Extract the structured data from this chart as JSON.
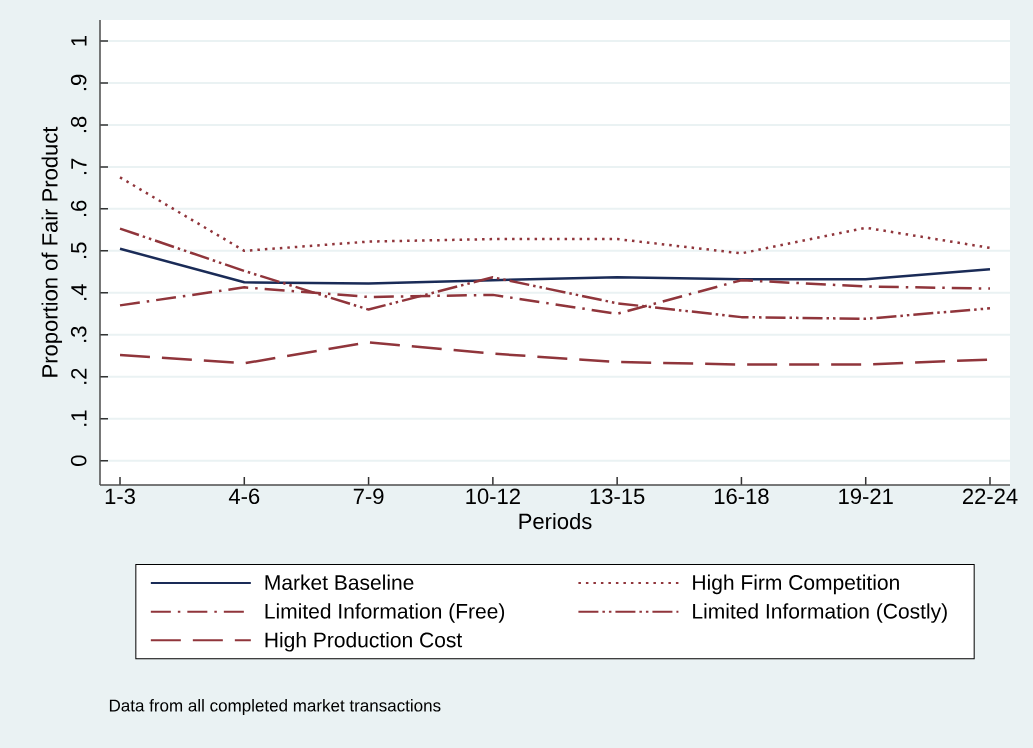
{
  "chart_data": {
    "type": "line",
    "xlabel": "Periods",
    "ylabel": "Proportion of Fair Product",
    "categories": [
      "1-3",
      "4-6",
      "7-9",
      "10-12",
      "13-15",
      "16-18",
      "19-21",
      "22-24"
    ],
    "series": [
      {
        "name": "Market Baseline",
        "color": "#1a2b57",
        "line_style": "solid",
        "values": [
          0.505,
          0.425,
          0.422,
          0.43,
          0.437,
          0.432,
          0.432,
          0.456
        ]
      },
      {
        "name": "High Firm Competition",
        "color": "#90353b",
        "line_style": "dotted",
        "values": [
          0.675,
          0.5,
          0.522,
          0.528,
          0.528,
          0.494,
          0.555,
          0.507
        ]
      },
      {
        "name": "Limited Information (Free)",
        "color": "#90353b",
        "line_style": "dashdot",
        "values": [
          0.37,
          0.413,
          0.39,
          0.395,
          0.35,
          0.43,
          0.415,
          0.41
        ]
      },
      {
        "name": "Limited Information (Costly)",
        "color": "#90353b",
        "line_style": "dashdotdot",
        "values": [
          0.553,
          0.452,
          0.36,
          0.437,
          0.375,
          0.342,
          0.338,
          0.363
        ]
      },
      {
        "name": "High Production Cost",
        "color": "#90353b",
        "line_style": "longdash",
        "values": [
          0.252,
          0.232,
          0.282,
          0.255,
          0.235,
          0.229,
          0.229,
          0.241
        ]
      }
    ],
    "ylim": [
      -0.058,
      1.05
    ],
    "yticks": [
      0,
      {
        "value": 0.1,
        "label": ".1"
      },
      {
        "value": 0.2,
        "label": ".2"
      },
      {
        "value": 0.3,
        "label": ".3"
      },
      {
        "value": 0.4,
        "label": ".4"
      },
      {
        "value": 0.5,
        "label": ".5"
      },
      {
        "value": 0.6,
        "label": ".6"
      },
      {
        "value": 0.7,
        "label": ".7"
      },
      {
        "value": 0.8,
        "label": ".8"
      },
      {
        "value": 0.9,
        "label": ".9"
      },
      1
    ],
    "grid": "y",
    "legend": "bottom",
    "marker": "none",
    "annotations": [
      "Data from all completed market transactions"
    ]
  }
}
